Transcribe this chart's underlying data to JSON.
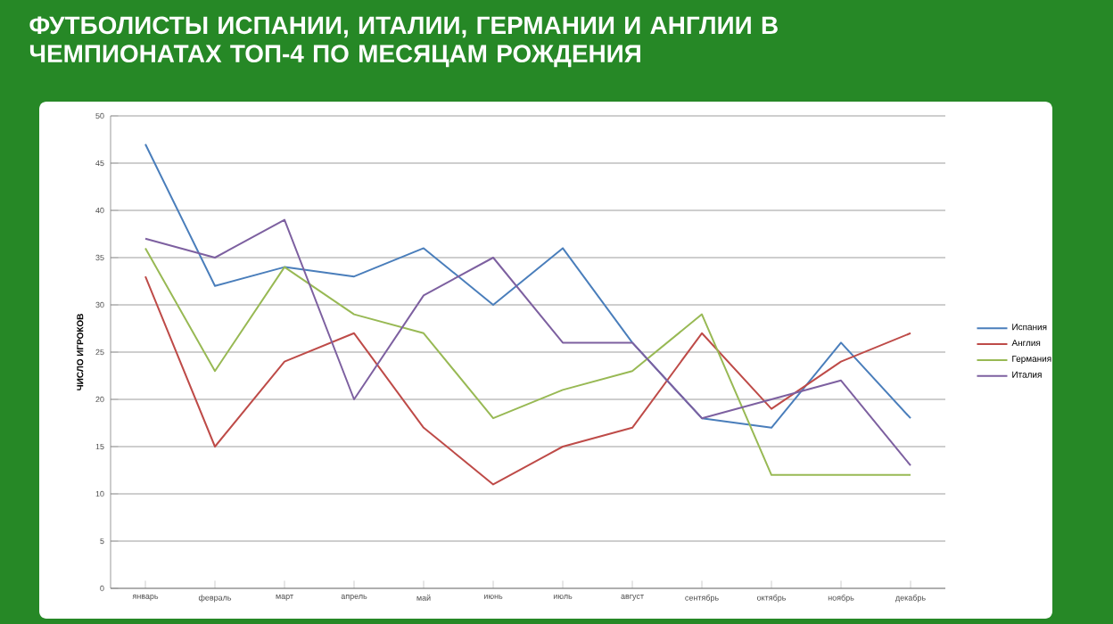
{
  "chart_data": {
    "type": "line",
    "title": "ФУТБОЛИСТЫ ИСПАНИИ, ИТАЛИИ, ГЕРМАНИИ И АНГЛИИ В ЧЕМПИОНАТАХ ТОП-4 ПО МЕСЯЦАМ РОЖДЕНИЯ",
    "ylabel": "ЧИСЛО ИГРОКОВ",
    "categories": [
      "январь",
      "февраль",
      "март",
      "апрель",
      "май",
      "июнь",
      "июль",
      "август",
      "сентябрь",
      "октябрь",
      "ноябрь",
      "декабрь"
    ],
    "series": [
      {
        "name": "Испания",
        "color": "#4a7ebb",
        "values": [
          47,
          32,
          34,
          33,
          36,
          30,
          36,
          26,
          18,
          17,
          26,
          18
        ]
      },
      {
        "name": "Англия",
        "color": "#be4b48",
        "values": [
          33,
          15,
          24,
          27,
          17,
          11,
          15,
          17,
          27,
          19,
          24,
          27
        ]
      },
      {
        "name": "Германия",
        "color": "#98b954",
        "values": [
          36,
          23,
          34,
          29,
          27,
          18,
          21,
          23,
          29,
          12,
          12,
          12
        ]
      },
      {
        "name": "Италия",
        "color": "#7d60a0",
        "values": [
          37,
          35,
          39,
          20,
          31,
          35,
          26,
          26,
          18,
          20,
          22,
          13
        ]
      }
    ],
    "ylim": [
      0,
      50
    ],
    "yticks": [
      0,
      5,
      10,
      15,
      20,
      25,
      30,
      35,
      40,
      45,
      50
    ],
    "grid": "y",
    "legend": "right",
    "marker": "none",
    "line_style": "solid"
  }
}
